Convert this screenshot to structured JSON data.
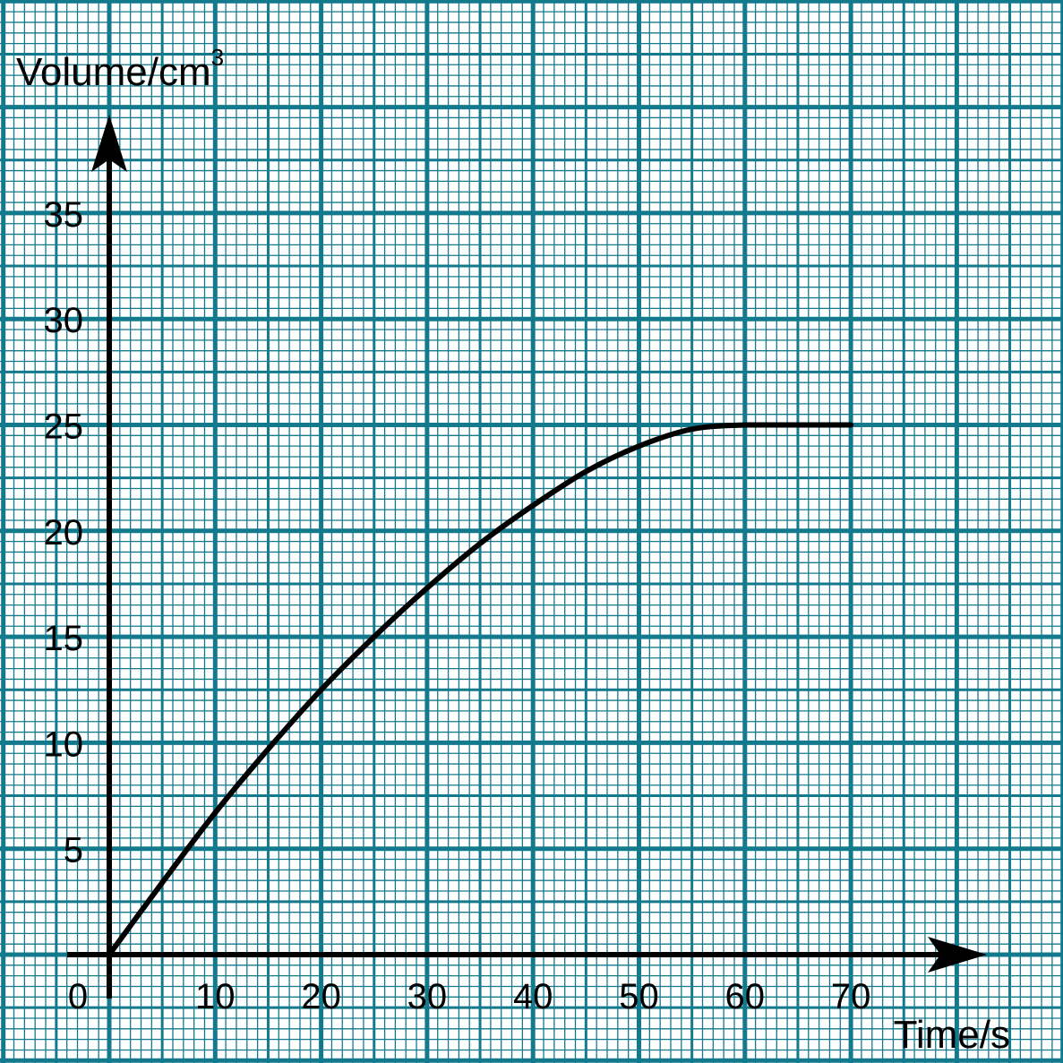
{
  "colors": {
    "grid": "#137A8E",
    "axis": "#000000",
    "curve": "#000000",
    "background": "#ffffff"
  },
  "chart_data": {
    "type": "line",
    "title": "",
    "xlabel": "Time/s",
    "ylabel_main": "Volume/cm",
    "ylabel_sup": "3",
    "grid": true,
    "xlim": [
      0,
      80
    ],
    "ylim": [
      0,
      40
    ],
    "origin_label": "0",
    "x_ticks": [
      "10",
      "20",
      "30",
      "40",
      "50",
      "60",
      "70"
    ],
    "y_ticks": [
      "5",
      "10",
      "15",
      "20",
      "25",
      "30",
      "35"
    ],
    "x_tick_values": [
      10,
      20,
      30,
      40,
      50,
      60,
      70
    ],
    "y_tick_values": [
      5,
      10,
      15,
      20,
      25,
      30,
      35
    ],
    "series": [
      {
        "x": [
          0,
          5,
          10,
          15,
          20,
          25,
          30,
          35,
          40,
          45,
          50,
          55,
          60,
          65,
          70
        ],
        "values": [
          0,
          3.4,
          6.7,
          9.7,
          12.5,
          15.0,
          17.3,
          19.4,
          21.2,
          22.8,
          24.0,
          24.8,
          25.0,
          25.0,
          25.0
        ]
      }
    ]
  }
}
